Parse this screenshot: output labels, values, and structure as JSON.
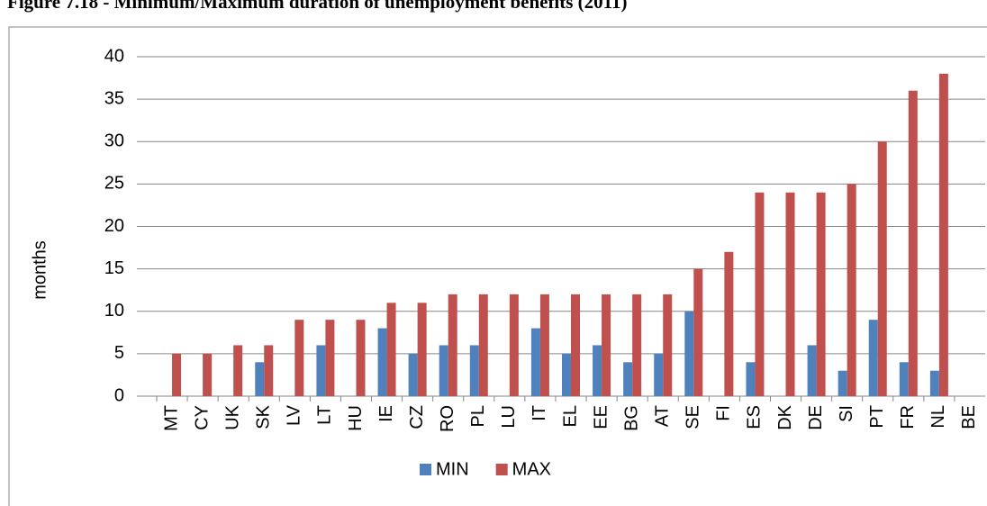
{
  "chart_data": {
    "type": "bar",
    "title": "Figure 7.18 - Minimum/Maximum duration of unemployment benefits (2011)",
    "y_label": "months",
    "categories": [
      "MT",
      "CY",
      "UK",
      "SK",
      "LV",
      "LT",
      "HU",
      "IE",
      "CZ",
      "RO",
      "PL",
      "LU",
      "IT",
      "EL",
      "EE",
      "BG",
      "AT",
      "SE",
      "FI",
      "ES",
      "DK",
      "DE",
      "SI",
      "PT",
      "FR",
      "NL",
      "BE"
    ],
    "series": [
      {
        "name": "MIN",
        "color": "#4f81bd",
        "values": [
          0,
          0,
          0,
          4,
          0,
          6,
          0,
          8,
          5,
          6,
          6,
          0,
          8,
          5,
          6,
          4,
          5,
          10,
          0,
          4,
          0,
          6,
          3,
          9,
          4,
          3,
          null
        ]
      },
      {
        "name": "MAX",
        "color": "#c0504d",
        "values": [
          5,
          5,
          6,
          6,
          9,
          9,
          9,
          11,
          11,
          12,
          12,
          12,
          12,
          12,
          12,
          12,
          12,
          15,
          17,
          24,
          24,
          24,
          25,
          30,
          36,
          38,
          null
        ]
      }
    ],
    "ylim": [
      0,
      40
    ],
    "yticks": [
      0,
      5,
      10,
      15,
      20,
      25,
      30,
      35,
      40
    ],
    "grid": true,
    "legend": "bottom"
  }
}
